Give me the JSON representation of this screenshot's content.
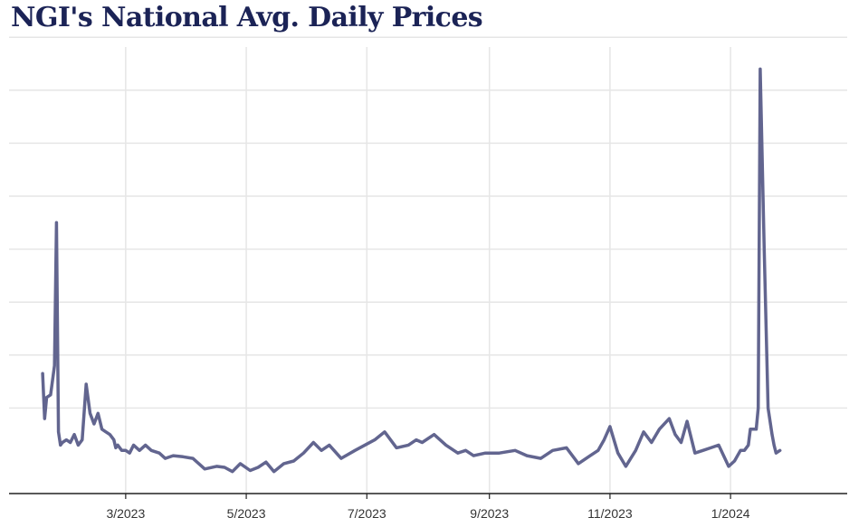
{
  "chart_data": {
    "type": "line",
    "title": "NGI's National Avg. Daily Prices",
    "xlabel": "",
    "ylabel": "",
    "x_axis": {
      "start": "2023-01-01",
      "end": "2024-02-29",
      "tick_labels": [
        "3/2023",
        "5/2023",
        "7/2023",
        "9/2023",
        "11/2023",
        "1/2024"
      ],
      "tick_dates": [
        "2023-03-01",
        "2023-05-01",
        "2023-07-01",
        "2023-09-01",
        "2023-11-01",
        "2024-01-01"
      ]
    },
    "y_axis": {
      "ylim": [
        0,
        8
      ],
      "gridlines": [
        1,
        2,
        3,
        4,
        5,
        6,
        7,
        8
      ],
      "tick_labels_visible": false
    },
    "grid": true,
    "legend": "none",
    "series": [
      {
        "color": "#62658f",
        "x": [
          "2023-01-18",
          "2023-01-19",
          "2023-01-20",
          "2023-01-22",
          "2023-01-24",
          "2023-01-25",
          "2023-01-26",
          "2023-01-27",
          "2023-01-28",
          "2023-01-30",
          "2023-02-01",
          "2023-02-03",
          "2023-02-05",
          "2023-02-07",
          "2023-02-09",
          "2023-02-11",
          "2023-02-13",
          "2023-02-15",
          "2023-02-17",
          "2023-02-19",
          "2023-02-21",
          "2023-02-23",
          "2023-02-24",
          "2023-02-25",
          "2023-02-27",
          "2023-03-01",
          "2023-03-03",
          "2023-03-05",
          "2023-03-08",
          "2023-03-11",
          "2023-03-14",
          "2023-03-18",
          "2023-03-21",
          "2023-03-25",
          "2023-03-30",
          "2023-04-04",
          "2023-04-10",
          "2023-04-16",
          "2023-04-20",
          "2023-04-24",
          "2023-04-28",
          "2023-05-03",
          "2023-05-07",
          "2023-05-11",
          "2023-05-15",
          "2023-05-20",
          "2023-05-25",
          "2023-05-30",
          "2023-06-04",
          "2023-06-08",
          "2023-06-12",
          "2023-06-18",
          "2023-06-25",
          "2023-06-30",
          "2023-07-05",
          "2023-07-10",
          "2023-07-16",
          "2023-07-22",
          "2023-07-26",
          "2023-07-29",
          "2023-08-04",
          "2023-08-10",
          "2023-08-16",
          "2023-08-20",
          "2023-08-24",
          "2023-08-30",
          "2023-09-06",
          "2023-09-14",
          "2023-09-20",
          "2023-09-27",
          "2023-10-03",
          "2023-10-10",
          "2023-10-16",
          "2023-10-22",
          "2023-10-26",
          "2023-10-29",
          "2023-11-01",
          "2023-11-05",
          "2023-11-09",
          "2023-11-14",
          "2023-11-18",
          "2023-11-22",
          "2023-11-26",
          "2023-12-01",
          "2023-12-04",
          "2023-12-07",
          "2023-12-10",
          "2023-12-14",
          "2023-12-18",
          "2023-12-22",
          "2023-12-26",
          "2023-12-31",
          "2024-01-03",
          "2024-01-06",
          "2024-01-08",
          "2024-01-10",
          "2024-01-11",
          "2024-01-12",
          "2024-01-13",
          "2024-01-14",
          "2024-01-15",
          "2024-01-16",
          "2024-01-18",
          "2024-01-20",
          "2024-01-22",
          "2024-01-23",
          "2024-01-24",
          "2024-01-26"
        ],
        "y": [
          1.65,
          0.8,
          1.2,
          1.25,
          1.8,
          4.5,
          0.55,
          0.3,
          0.35,
          0.4,
          0.35,
          0.5,
          0.3,
          0.4,
          1.45,
          0.9,
          0.7,
          0.9,
          0.6,
          0.55,
          0.5,
          0.4,
          0.25,
          0.3,
          0.2,
          0.2,
          0.15,
          0.3,
          0.2,
          0.3,
          0.2,
          0.15,
          0.05,
          0.1,
          0.08,
          0.05,
          -0.15,
          -0.1,
          -0.12,
          -0.2,
          -0.05,
          -0.18,
          -0.12,
          -0.02,
          -0.2,
          -0.05,
          0.0,
          0.15,
          0.35,
          0.2,
          0.3,
          0.05,
          0.2,
          0.3,
          0.4,
          0.55,
          0.25,
          0.3,
          0.4,
          0.35,
          0.5,
          0.3,
          0.15,
          0.2,
          0.1,
          0.15,
          0.15,
          0.2,
          0.1,
          0.05,
          0.2,
          0.25,
          -0.05,
          0.1,
          0.2,
          0.4,
          0.65,
          0.15,
          -0.1,
          0.2,
          0.55,
          0.35,
          0.6,
          0.8,
          0.5,
          0.35,
          0.75,
          0.15,
          0.2,
          0.25,
          0.3,
          -0.1,
          0.0,
          0.2,
          0.2,
          0.3,
          0.6,
          0.6,
          0.6,
          0.6,
          1.0,
          7.4,
          4.0,
          1.0,
          0.5,
          0.3,
          0.15,
          0.2
        ]
      }
    ]
  }
}
